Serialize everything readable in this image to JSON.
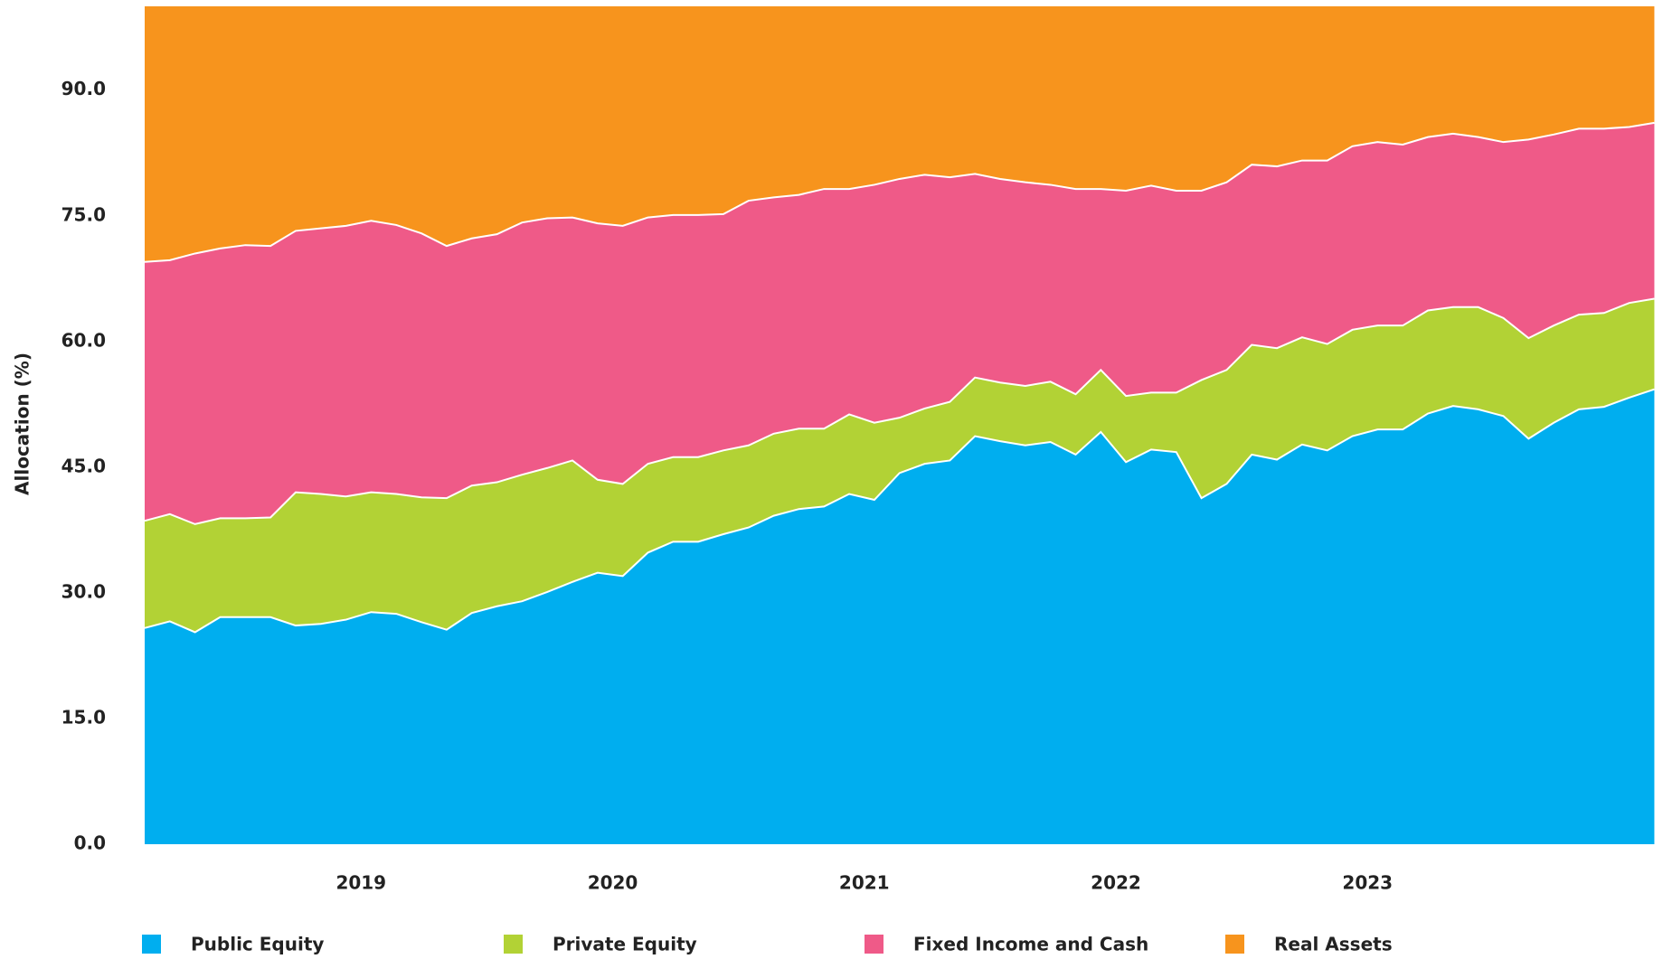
{
  "chart_data": {
    "type": "stacked_area",
    "y_label": "Allocation (%)",
    "x": [
      2018.14,
      2018.24,
      2018.34,
      2018.44,
      2018.54,
      2018.64,
      2018.74,
      2018.84,
      2018.94,
      2019.04,
      2019.14,
      2019.24,
      2019.34,
      2019.44,
      2019.54,
      2019.64,
      2019.74,
      2019.84,
      2019.94,
      2020.04,
      2020.14,
      2020.24,
      2020.34,
      2020.44,
      2020.54,
      2020.64,
      2020.74,
      2020.84,
      2020.94,
      2021.04,
      2021.14,
      2021.24,
      2021.34,
      2021.44,
      2021.54,
      2021.64,
      2021.74,
      2021.84,
      2021.94,
      2022.04,
      2022.14,
      2022.24,
      2022.34,
      2022.44,
      2022.54,
      2022.64,
      2022.74,
      2022.84,
      2022.94,
      2023.04,
      2023.14,
      2023.24,
      2023.34,
      2023.44,
      2023.54,
      2023.64,
      2023.74,
      2023.84,
      2023.94,
      2024.04,
      2024.14
    ],
    "xlim": [
      2018.14,
      2024.16
    ],
    "xticks": [
      2019,
      2020,
      2021,
      2022,
      2023
    ],
    "ylim": [
      0,
      100
    ],
    "yticks": [
      {
        "value": 0,
        "label": "0.0"
      },
      {
        "value": 15,
        "label": "15.0"
      },
      {
        "value": 30,
        "label": "30.0"
      },
      {
        "value": 45,
        "label": "45.0"
      },
      {
        "value": 60,
        "label": "60.0"
      },
      {
        "value": 75,
        "label": "75.0"
      },
      {
        "value": 90,
        "label": "90.0"
      }
    ],
    "legend": "bottom",
    "series": [
      {
        "name": "Public Equity",
        "color": "#00aeef",
        "values": [
          25.8,
          26.6,
          25.3,
          27.1,
          27.1,
          27.1,
          26.1,
          26.3,
          26.8,
          27.7,
          27.5,
          26.5,
          25.6,
          27.6,
          28.4,
          29.0,
          30.1,
          31.3,
          32.4,
          32.0,
          34.8,
          36.1,
          36.1,
          37.0,
          37.8,
          39.2,
          40.0,
          40.3,
          41.8,
          41.1,
          44.3,
          45.4,
          45.8,
          48.7,
          48.1,
          47.6,
          48.0,
          46.5,
          49.2,
          45.6,
          47.1,
          46.8,
          41.3,
          43.0,
          46.5,
          45.9,
          47.7,
          47.0,
          48.7,
          49.5,
          49.5,
          51.4,
          52.3,
          51.9,
          51.1,
          48.4,
          50.3,
          51.9,
          52.2,
          53.3,
          54.3
        ]
      },
      {
        "name": "Private Equity",
        "color": "#b2d235",
        "values": [
          12.8,
          12.8,
          12.9,
          11.8,
          11.8,
          11.9,
          15.9,
          15.5,
          14.7,
          14.3,
          14.3,
          14.9,
          15.7,
          15.2,
          14.8,
          15.1,
          14.8,
          14.5,
          11.1,
          11.0,
          10.6,
          10.1,
          10.1,
          10.0,
          9.8,
          9.8,
          9.6,
          9.3,
          9.5,
          9.2,
          6.6,
          6.6,
          7.0,
          7.0,
          7.0,
          7.1,
          7.2,
          7.2,
          7.4,
          7.9,
          6.8,
          7.1,
          14.1,
          13.6,
          13.1,
          13.3,
          12.8,
          12.7,
          12.7,
          12.4,
          12.4,
          12.3,
          11.8,
          12.2,
          11.7,
          12.0,
          11.6,
          11.3,
          11.2,
          11.3,
          10.8
        ]
      },
      {
        "name": "Fixed Income and Cash",
        "color": "#ef5a88",
        "values": [
          30.9,
          30.3,
          32.3,
          32.2,
          32.6,
          32.4,
          31.2,
          31.7,
          32.3,
          32.4,
          32.1,
          31.5,
          30.1,
          29.5,
          29.6,
          30.1,
          29.8,
          29.0,
          30.6,
          30.8,
          29.4,
          28.9,
          28.9,
          28.2,
          29.2,
          28.2,
          27.9,
          28.6,
          26.9,
          28.4,
          28.5,
          27.9,
          26.8,
          24.3,
          24.3,
          24.3,
          23.5,
          24.5,
          21.6,
          24.5,
          24.7,
          24.1,
          22.6,
          22.4,
          21.5,
          21.7,
          21.1,
          21.9,
          21.9,
          21.9,
          21.6,
          20.7,
          20.7,
          20.3,
          21.0,
          23.7,
          22.8,
          22.2,
          22.0,
          21.0,
          21.0
        ]
      },
      {
        "name": "Real Assets",
        "color": "#f7941d",
        "values": [
          30.5,
          30.3,
          29.5,
          28.9,
          28.5,
          28.6,
          26.8,
          26.5,
          26.2,
          25.6,
          26.1,
          27.1,
          28.6,
          27.7,
          27.2,
          25.8,
          25.3,
          25.2,
          25.9,
          26.2,
          25.2,
          24.9,
          24.9,
          24.8,
          23.2,
          22.8,
          22.5,
          21.8,
          21.8,
          21.3,
          20.6,
          20.1,
          20.4,
          20.0,
          20.6,
          21.0,
          21.3,
          21.8,
          21.8,
          22.0,
          21.4,
          22.0,
          22.0,
          21.0,
          18.9,
          19.1,
          18.4,
          18.4,
          16.7,
          16.2,
          16.5,
          15.6,
          15.2,
          15.6,
          16.2,
          15.9,
          15.3,
          14.6,
          14.6,
          14.4,
          13.9
        ]
      }
    ]
  }
}
